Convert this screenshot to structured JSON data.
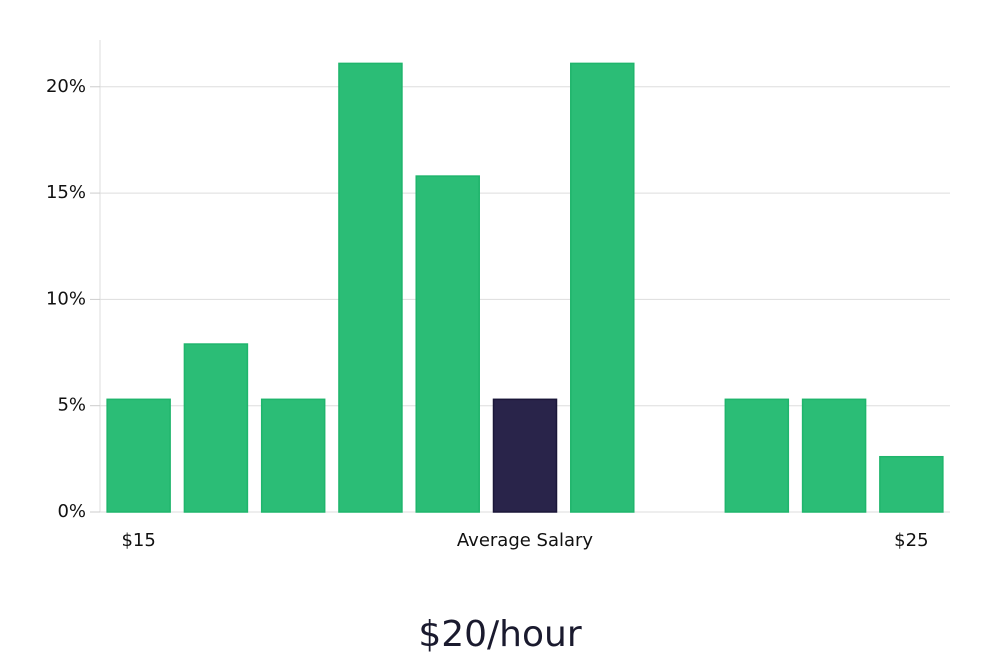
{
  "chart_data": {
    "type": "bar",
    "categories": [
      "$15",
      null,
      null,
      null,
      null,
      "Average Salary",
      null,
      null,
      null,
      null,
      "$25"
    ],
    "values": [
      5.3,
      7.9,
      5.3,
      21.1,
      15.8,
      5.3,
      21.1,
      0,
      5.3,
      5.3,
      2.6
    ],
    "colors": [
      "#2bbd76",
      "#2bbd76",
      "#2bbd76",
      "#2bbd76",
      "#2bbd76",
      "#29244a",
      "#2bbd76",
      "#2bbd76",
      "#2bbd76",
      "#2bbd76",
      "#2bbd76"
    ],
    "ylim": [
      0,
      22.2
    ],
    "yticks": [
      {
        "value": 0,
        "label": "0%"
      },
      {
        "value": 5,
        "label": "5%"
      },
      {
        "value": 10,
        "label": "10%"
      },
      {
        "value": 15,
        "label": "15%"
      },
      {
        "value": 20,
        "label": "20%"
      }
    ],
    "grid": true,
    "footer": "$20/hour"
  }
}
